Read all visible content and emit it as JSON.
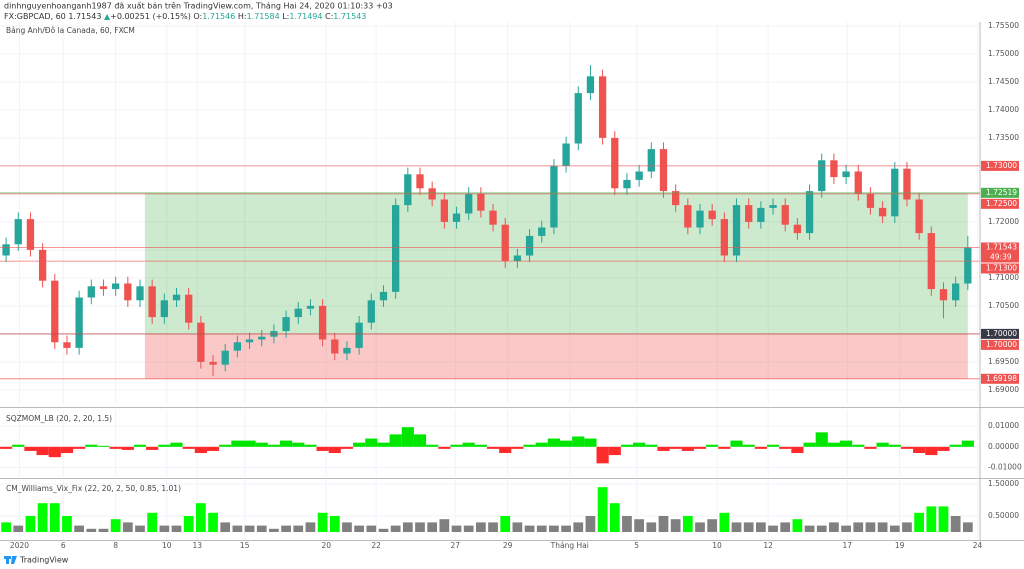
{
  "header": {
    "publisher": "dinhnguyenhoanganh1987 đã xuất bản trên TradingView.com, Tháng Hai 24, 2020 01:10:33 +03",
    "symbol": "FX:GBPCAD, 60",
    "last": "1.71543",
    "direction": "▲",
    "change": "+0.00251 (+0.15%)",
    "ohlc": [
      {
        "key": "O:",
        "value": "1.71546"
      },
      {
        "key": "H:",
        "value": "1.71584"
      },
      {
        "key": "L:",
        "value": "1.71494"
      },
      {
        "key": "C:",
        "value": "1.71543"
      }
    ]
  },
  "footer": {
    "brand": "TradingView"
  },
  "chart_data": [
    {
      "type": "candlestick",
      "title": "Bảng Anh/Đô la Canada, 60, FXCM",
      "up_color": "#26a69a",
      "down_color": "#ef5350",
      "open": [
        1.714,
        1.716,
        1.7205,
        1.715,
        1.7095,
        1.6985,
        1.6975,
        1.7065,
        1.7085,
        1.708,
        1.709,
        1.706,
        1.7085,
        1.703,
        1.706,
        1.707,
        1.702,
        1.695,
        1.6945,
        1.697,
        1.6985,
        1.699,
        1.6995,
        1.7005,
        1.703,
        1.7045,
        1.705,
        1.699,
        1.6965,
        1.6975,
        1.702,
        1.706,
        1.7075,
        1.723,
        1.7285,
        1.726,
        1.724,
        1.72,
        1.7215,
        1.725,
        1.722,
        1.7195,
        1.713,
        1.714,
        1.7175,
        1.719,
        1.73,
        1.734,
        1.743,
        1.746,
        1.735,
        1.726,
        1.7275,
        1.729,
        1.733,
        1.7255,
        1.723,
        1.719,
        1.722,
        1.7205,
        1.714,
        1.723,
        1.72,
        1.7225,
        1.723,
        1.7195,
        1.718,
        1.7255,
        1.731,
        1.728,
        1.729,
        1.725,
        1.7225,
        1.721,
        1.7295,
        1.724,
        1.718,
        1.708,
        1.706,
        1.709
      ],
      "high": [
        1.7172,
        1.7217,
        1.7217,
        1.7162,
        1.7107,
        1.6997,
        1.7077,
        1.7097,
        1.7097,
        1.7102,
        1.7102,
        1.7097,
        1.7097,
        1.7072,
        1.7082,
        1.7082,
        1.7032,
        1.6962,
        1.6982,
        1.6997,
        1.7002,
        1.7007,
        1.7017,
        1.7042,
        1.7057,
        1.7062,
        1.7062,
        1.7002,
        1.6987,
        1.7032,
        1.7072,
        1.7087,
        1.7242,
        1.7297,
        1.7297,
        1.7272,
        1.7252,
        1.7227,
        1.7262,
        1.7262,
        1.7232,
        1.7207,
        1.7152,
        1.7187,
        1.7202,
        1.7312,
        1.7352,
        1.7442,
        1.748,
        1.7472,
        1.7362,
        1.7287,
        1.7302,
        1.7342,
        1.7342,
        1.7267,
        1.7242,
        1.7232,
        1.7232,
        1.7217,
        1.7242,
        1.7242,
        1.7237,
        1.7242,
        1.7242,
        1.7207,
        1.7267,
        1.7322,
        1.7322,
        1.7302,
        1.7302,
        1.7262,
        1.7237,
        1.7307,
        1.7307,
        1.7252,
        1.7192,
        1.7092,
        1.7102,
        1.7175
      ],
      "low": [
        1.7128,
        1.7148,
        1.7138,
        1.7083,
        1.6973,
        1.6963,
        1.6963,
        1.7053,
        1.7068,
        1.7068,
        1.7048,
        1.7048,
        1.7018,
        1.7018,
        1.7048,
        1.7008,
        1.6938,
        1.6925,
        1.6933,
        1.6958,
        1.6973,
        1.6978,
        1.6983,
        1.6993,
        1.7018,
        1.7033,
        1.6978,
        1.6953,
        1.6953,
        1.6963,
        1.7008,
        1.7048,
        1.7063,
        1.7218,
        1.7248,
        1.7228,
        1.7188,
        1.7188,
        1.7203,
        1.7208,
        1.7183,
        1.7118,
        1.7118,
        1.7128,
        1.7163,
        1.7178,
        1.7288,
        1.7328,
        1.7418,
        1.7338,
        1.7248,
        1.7248,
        1.7263,
        1.7278,
        1.7243,
        1.7218,
        1.7178,
        1.7178,
        1.7193,
        1.7128,
        1.7128,
        1.7188,
        1.7188,
        1.7213,
        1.7183,
        1.7168,
        1.7168,
        1.7243,
        1.7268,
        1.7268,
        1.7238,
        1.7213,
        1.7198,
        1.7198,
        1.7228,
        1.7168,
        1.7068,
        1.7028,
        1.7048,
        1.7078
      ],
      "close": [
        1.716,
        1.7205,
        1.715,
        1.7095,
        1.6985,
        1.6975,
        1.7065,
        1.7085,
        1.708,
        1.709,
        1.706,
        1.7085,
        1.703,
        1.706,
        1.707,
        1.702,
        1.695,
        1.6945,
        1.697,
        1.6985,
        1.699,
        1.6995,
        1.7005,
        1.703,
        1.7045,
        1.705,
        1.699,
        1.6965,
        1.6975,
        1.702,
        1.706,
        1.7075,
        1.723,
        1.7285,
        1.726,
        1.724,
        1.72,
        1.7215,
        1.725,
        1.722,
        1.7195,
        1.713,
        1.714,
        1.7175,
        1.719,
        1.73,
        1.734,
        1.743,
        1.746,
        1.735,
        1.726,
        1.7275,
        1.729,
        1.733,
        1.7255,
        1.723,
        1.719,
        1.722,
        1.7205,
        1.714,
        1.723,
        1.72,
        1.7225,
        1.723,
        1.7195,
        1.718,
        1.7255,
        1.731,
        1.728,
        1.729,
        1.725,
        1.7225,
        1.721,
        1.7295,
        1.724,
        1.718,
        1.708,
        1.706,
        1.709,
        1.71543
      ],
      "ylim": [
        1.6873,
        1.7557
      ],
      "yticks": [
        {
          "value": 1.69,
          "label": "1.69000"
        },
        {
          "value": 1.695,
          "label": "1.69500"
        },
        {
          "value": 1.7,
          "label": "1.70000"
        },
        {
          "value": 1.705,
          "label": "1.70500"
        },
        {
          "value": 1.71,
          "label": "1.71000"
        },
        {
          "value": 1.715,
          "label": "1.71500"
        },
        {
          "value": 1.72,
          "label": "1.72000"
        },
        {
          "value": 1.725,
          "label": "1.72500"
        },
        {
          "value": 1.73,
          "label": "1.73000"
        },
        {
          "value": 1.735,
          "label": "1.73500"
        },
        {
          "value": 1.74,
          "label": "1.74000"
        },
        {
          "value": 1.745,
          "label": "1.74500"
        },
        {
          "value": 1.75,
          "label": "1.75000"
        },
        {
          "value": 1.755,
          "label": "1.75500"
        }
      ],
      "xlim": [
        -0.5,
        80
      ],
      "xticks": [
        {
          "value": 1.1,
          "label": "2020"
        },
        {
          "value": 4.7,
          "label": "6"
        },
        {
          "value": 9.0,
          "label": "8"
        },
        {
          "value": 13.2,
          "label": "10"
        },
        {
          "value": 15.7,
          "label": "13"
        },
        {
          "value": 19.6,
          "label": "15"
        },
        {
          "value": 26.3,
          "label": "20"
        },
        {
          "value": 30.4,
          "label": "22"
        },
        {
          "value": 36.9,
          "label": "27"
        },
        {
          "value": 41.2,
          "label": "29"
        },
        {
          "value": 46.3,
          "label": "Tháng Hai"
        },
        {
          "value": 51.8,
          "label": "5"
        },
        {
          "value": 58.4,
          "label": "10"
        },
        {
          "value": 62.6,
          "label": "12"
        },
        {
          "value": 69.1,
          "label": "17"
        },
        {
          "value": 73.4,
          "label": "19"
        },
        {
          "value": 79.8,
          "label": "24"
        }
      ],
      "position": {
        "target": 1.72519,
        "entry": 1.7,
        "stop": 1.69198,
        "x_start": 11.4,
        "x_end": 79,
        "profit_color": "rgba(76,175,80,0.28)",
        "loss_color": "rgba(239,83,80,0.32)"
      },
      "levels": [
        {
          "value": 1.73,
          "label": "1.73000",
          "color": "#ef5350"
        },
        {
          "value": 1.72519,
          "label": "1.72519",
          "color": "#4caf50"
        },
        {
          "value": 1.725,
          "label": "1.72500",
          "color": "#ef5350"
        },
        {
          "value": 1.71543,
          "label": "1.71543",
          "color": "#ef5350",
          "countdown": "49:39"
        },
        {
          "value": 1.713,
          "label": "1.71300",
          "color": "#ef5350"
        },
        {
          "value": 1.7,
          "label": "1.70000",
          "color": "#363a45"
        },
        {
          "value": 1.7,
          "label": "1.70000",
          "color": "#ef5350"
        },
        {
          "value": 1.69198,
          "label": "1.69198",
          "color": "#ef5350"
        }
      ]
    },
    {
      "type": "histogram",
      "title": "SQZMOM_LB (20, 2, 20, 1.5)",
      "positive_color": "#00e600",
      "negative_color": "#ff2a2a",
      "values": [
        -0.001,
        0.001,
        -0.002,
        -0.004,
        -0.005,
        -0.003,
        -0.001,
        0.001,
        0.0005,
        -0.001,
        -0.0015,
        0.001,
        -0.0015,
        0.001,
        0.002,
        -0.001,
        -0.003,
        -0.002,
        0.001,
        0.003,
        0.003,
        0.002,
        0.001,
        0.003,
        0.002,
        0.001,
        -0.002,
        -0.003,
        -0.001,
        0.002,
        0.004,
        0.002,
        0.006,
        0.0095,
        0.006,
        0.001,
        -0.001,
        0.001,
        0.002,
        0.001,
        -0.001,
        -0.003,
        -0.001,
        0.001,
        0.002,
        0.004,
        0.003,
        0.005,
        0.004,
        -0.008,
        -0.004,
        0.001,
        0.002,
        0.001,
        -0.002,
        -0.001,
        -0.002,
        -0.001,
        0.001,
        -0.001,
        0.003,
        0.001,
        -0.001,
        0.001,
        -0.001,
        -0.003,
        0.002,
        0.007,
        0.002,
        0.003,
        0.001,
        -0.001,
        0.002,
        0.001,
        -0.001,
        -0.003,
        -0.004,
        -0.002,
        0.001,
        0.003
      ],
      "ylim": [
        -0.0146,
        0.0178
      ],
      "yticks": [
        {
          "value": -0.01,
          "label": "-0.01000"
        },
        {
          "value": 0,
          "label": "0.00000"
        },
        {
          "value": 0.01,
          "label": "0.01000"
        }
      ]
    },
    {
      "type": "columns",
      "title": "CM_Williams_Vix_Fix (22, 20, 2, 50, 0.85, 1.01)",
      "values": [
        0.3,
        0.2,
        0.5,
        0.9,
        0.9,
        0.5,
        0.2,
        0.1,
        0.1,
        0.4,
        0.3,
        0.2,
        0.6,
        0.2,
        0.2,
        0.5,
        0.9,
        0.6,
        0.3,
        0.2,
        0.2,
        0.2,
        0.1,
        0.2,
        0.2,
        0.3,
        0.6,
        0.5,
        0.3,
        0.2,
        0.2,
        0.1,
        0.2,
        0.3,
        0.3,
        0.3,
        0.4,
        0.2,
        0.2,
        0.3,
        0.3,
        0.5,
        0.3,
        0.2,
        0.2,
        0.2,
        0.2,
        0.3,
        0.5,
        1.4,
        0.9,
        0.5,
        0.4,
        0.3,
        0.5,
        0.4,
        0.5,
        0.3,
        0.4,
        0.6,
        0.3,
        0.3,
        0.3,
        0.2,
        0.3,
        0.4,
        0.2,
        0.2,
        0.3,
        0.2,
        0.3,
        0.3,
        0.3,
        0.2,
        0.3,
        0.6,
        0.8,
        0.8,
        0.5,
        0.3
      ],
      "colors": [
        "lime",
        "gray",
        "lime",
        "lime",
        "lime",
        "lime",
        "gray",
        "gray",
        "gray",
        "lime",
        "gray",
        "gray",
        "lime",
        "gray",
        "gray",
        "lime",
        "lime",
        "lime",
        "gray",
        "gray",
        "gray",
        "gray",
        "gray",
        "gray",
        "gray",
        "gray",
        "lime",
        "lime",
        "gray",
        "gray",
        "gray",
        "gray",
        "gray",
        "gray",
        "gray",
        "gray",
        "gray",
        "gray",
        "gray",
        "gray",
        "gray",
        "lime",
        "gray",
        "gray",
        "gray",
        "gray",
        "gray",
        "gray",
        "gray",
        "lime",
        "lime",
        "gray",
        "gray",
        "gray",
        "gray",
        "gray",
        "lime",
        "gray",
        "gray",
        "lime",
        "gray",
        "gray",
        "gray",
        "gray",
        "gray",
        "lime",
        "gray",
        "gray",
        "gray",
        "gray",
        "gray",
        "gray",
        "gray",
        "gray",
        "gray",
        "lime",
        "lime",
        "lime",
        "gray",
        "gray"
      ],
      "ylim": [
        -0.25,
        1.625
      ],
      "yticks": [
        {
          "value": 0.5,
          "label": "0.50000"
        },
        {
          "value": 1.5,
          "label": "1.50000"
        }
      ]
    }
  ]
}
